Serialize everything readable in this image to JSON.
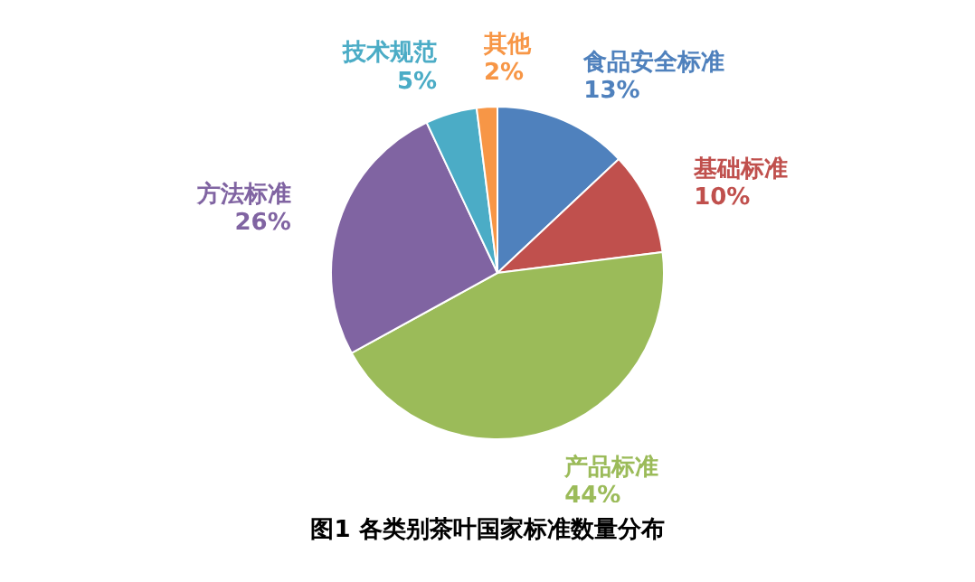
{
  "chart_data": {
    "type": "pie",
    "title": "图1 各类别茶叶国家标准数量分布",
    "categories": [
      "食品安全标准",
      "基础标准",
      "产品标准",
      "方法标准",
      "技术规范",
      "其他"
    ],
    "values": [
      13,
      10,
      44,
      26,
      5,
      2
    ],
    "colors": [
      "#4f81bd",
      "#c0504d",
      "#9bbb59",
      "#8064a2",
      "#4bacc6",
      "#f79646"
    ],
    "value_labels": [
      "13%",
      "10%",
      "44%",
      "26%",
      "5%",
      "2%"
    ]
  }
}
